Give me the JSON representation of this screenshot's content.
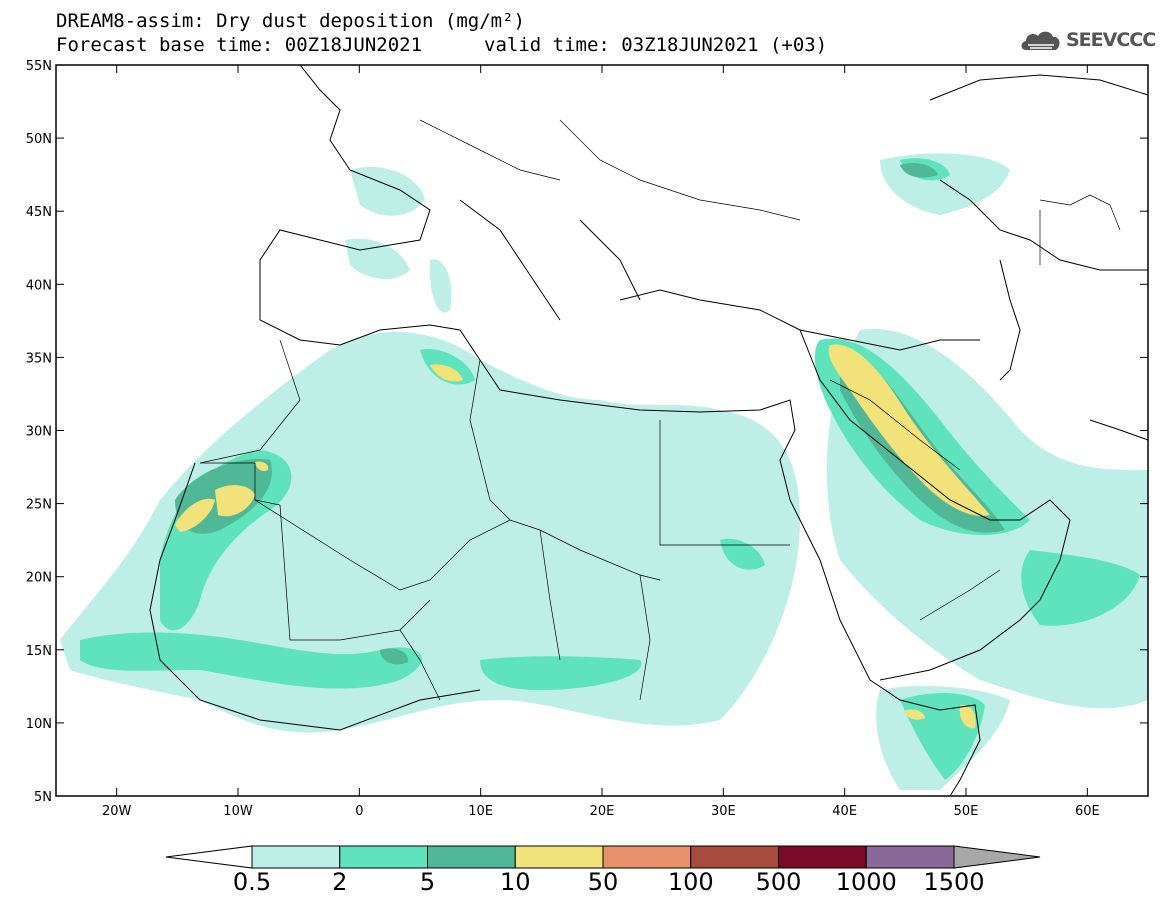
{
  "title": {
    "line1": "DREAM8-assim: Dry dust deposition (mg/m²)",
    "base_time": "Forecast base time: 00Z18JUN2021",
    "valid_time": "valid time: 03Z18JUN2021 (+03)"
  },
  "logo": {
    "icon": "cloud-logo-icon",
    "text": "SEEVCCC"
  },
  "map": {
    "lon_range": [
      -25,
      65
    ],
    "lat_range": [
      5,
      55
    ],
    "lat_ticks": [
      "5N",
      "10N",
      "15N",
      "20N",
      "25N",
      "30N",
      "35N",
      "40N",
      "45N",
      "50N",
      "55N"
    ],
    "lon_ticks": [
      "20W",
      "10W",
      "0",
      "10E",
      "20E",
      "30E",
      "40E",
      "50E",
      "60E"
    ]
  },
  "colorbar": {
    "labels": [
      "0.5",
      "2",
      "5",
      "10",
      "50",
      "100",
      "500",
      "1000",
      "1500"
    ],
    "colors": [
      "#ffffff",
      "#bdefe6",
      "#5fe3bd",
      "#50b897",
      "#f2e27a",
      "#e89068",
      "#a84a3e",
      "#7a0a28",
      "#8a6899",
      "#a8a8a8"
    ]
  }
}
